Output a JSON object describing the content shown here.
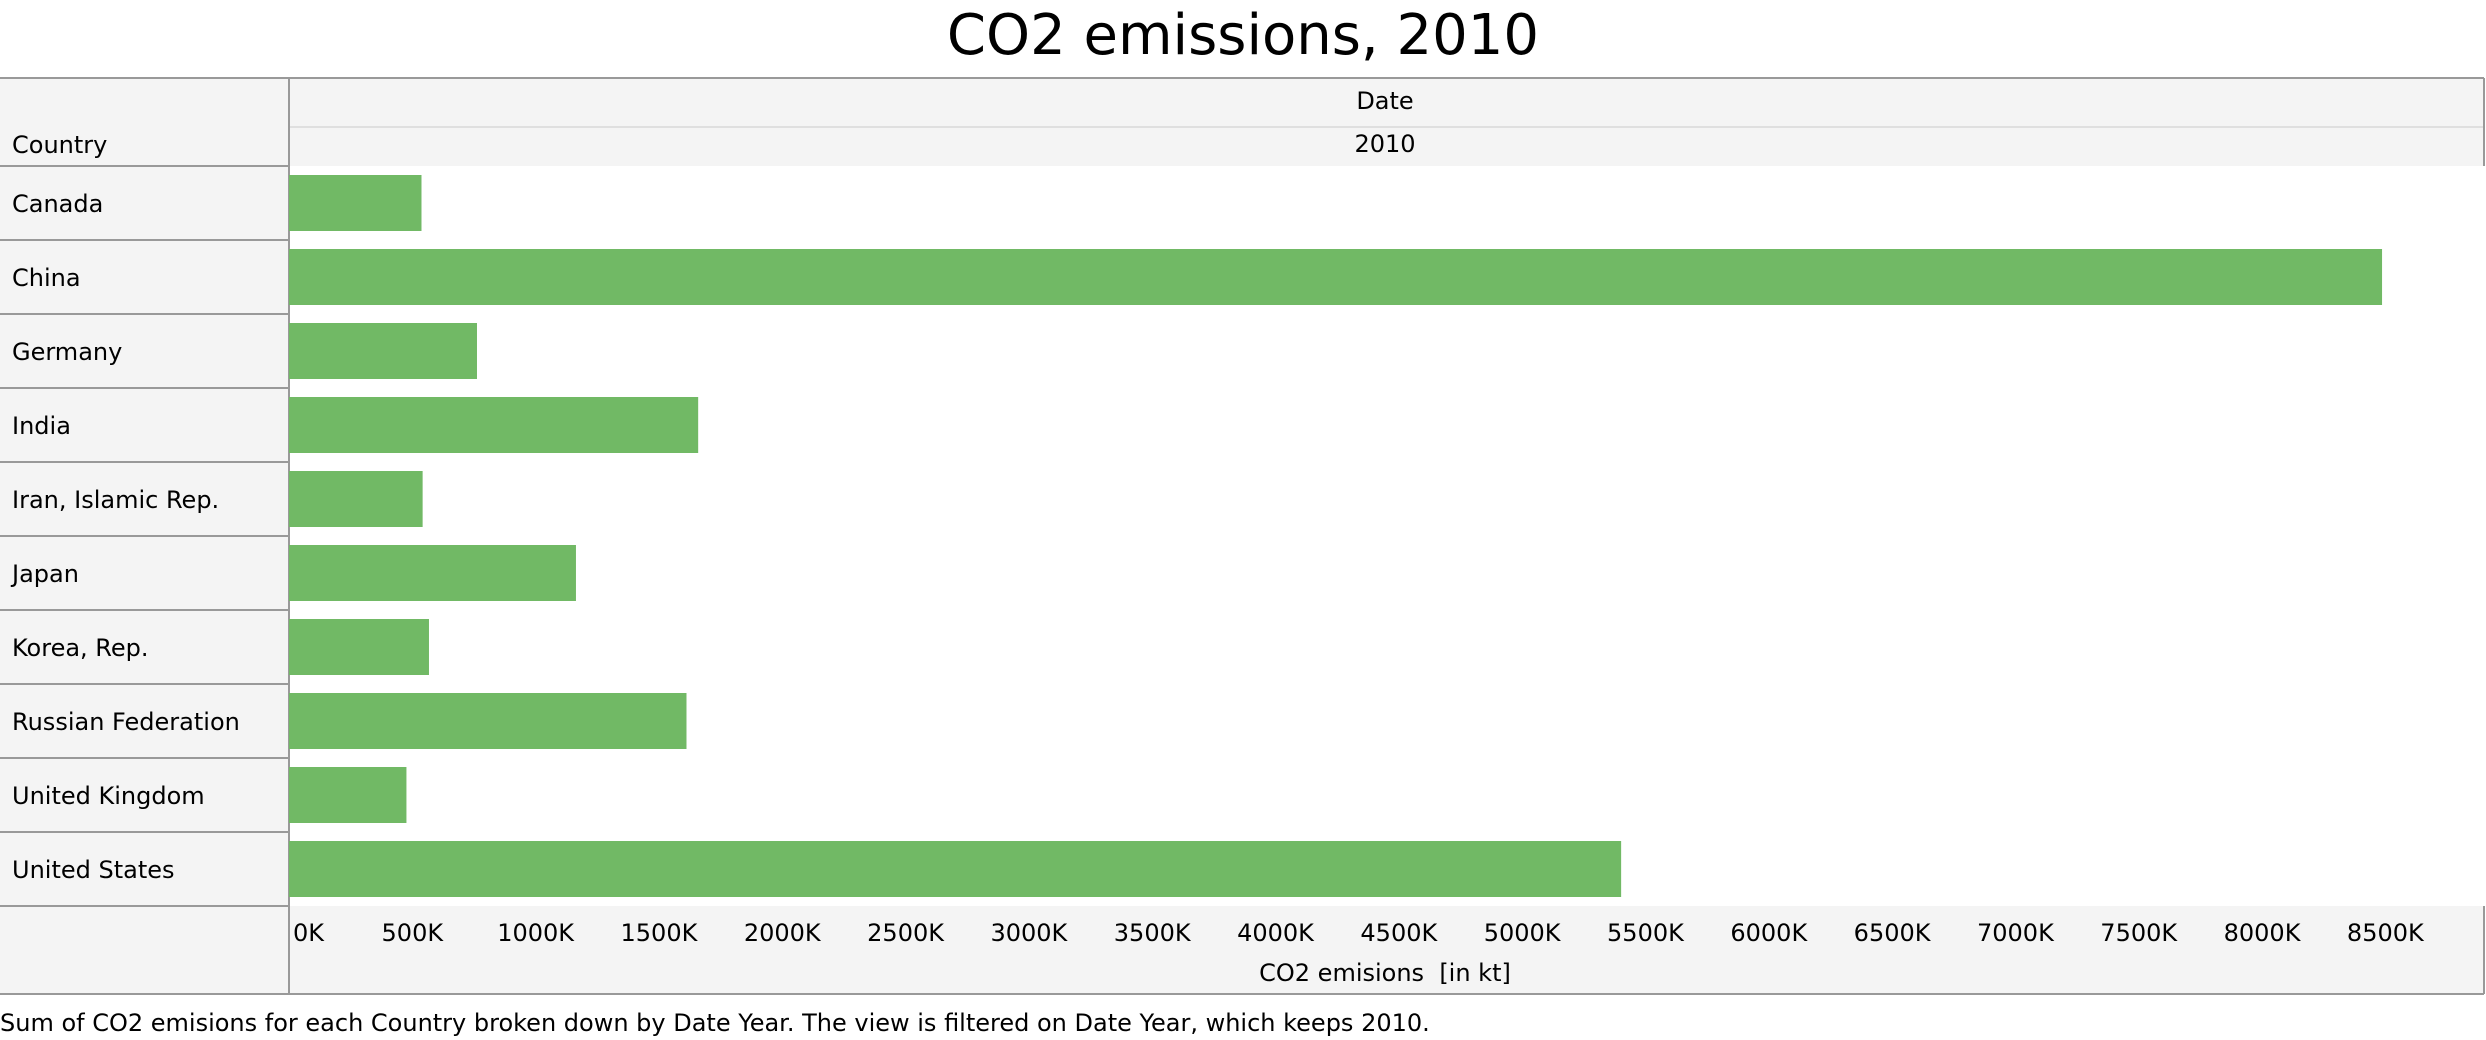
{
  "chart_data": {
    "type": "bar",
    "orientation": "horizontal",
    "title": "CO2 emissions, 2010",
    "row_header": "Country",
    "column_header": "Date",
    "column_value": "2010",
    "categories": [
      "Canada",
      "China",
      "Germany",
      "India",
      "Iran, Islamic Rep.",
      "Japan",
      "Korea, Rep.",
      "Russian Federation",
      "United Kingdom",
      "United States"
    ],
    "values": [
      537193,
      8486630,
      762243,
      1659080,
      541830,
      1163540,
      567566,
      1611690,
      476200,
      5401350
    ],
    "xlabel": "CO2 emisions  [in kt]",
    "xlim": [
      0,
      8900000
    ],
    "xticks": [
      0,
      500000,
      1000000,
      1500000,
      2000000,
      2500000,
      3000000,
      3500000,
      4000000,
      4500000,
      5000000,
      5500000,
      6000000,
      6500000,
      7000000,
      7500000,
      8000000,
      8500000
    ],
    "xtick_labels": [
      "0K",
      "500K",
      "1000K",
      "1500K",
      "2000K",
      "2500K",
      "3000K",
      "3500K",
      "4000K",
      "4500K",
      "5000K",
      "5500K",
      "6000K",
      "6500K",
      "7000K",
      "7500K",
      "8000K",
      "8500K"
    ],
    "bar_color": "#71b965",
    "header_bg": "#f4f4f4",
    "border_color": "#999999",
    "grid": false,
    "legend": "none",
    "caption": "Sum of CO2 emisions for each Country broken down by Date Year. The view is filtered on Date Year, which keeps 2010."
  }
}
